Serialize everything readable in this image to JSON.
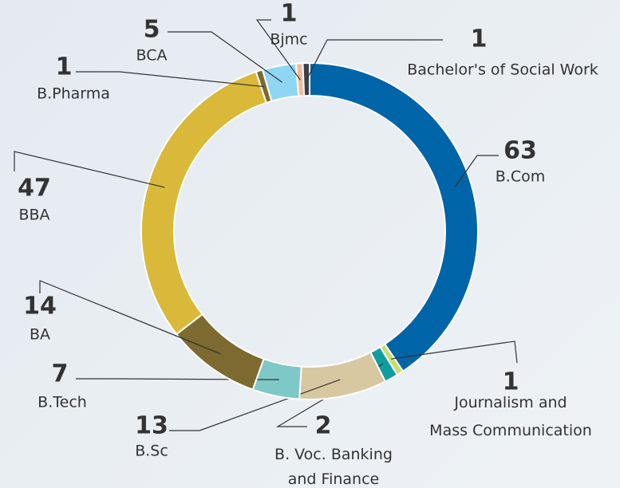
{
  "chart_data": {
    "type": "donut",
    "categories": [
      "B.Com",
      "Journalism and Mass Communication",
      "B. Voc. Banking and Finance",
      "B.Sc",
      "B.Tech",
      "BA",
      "BBA",
      "B.Pharma",
      "BCA",
      "Bjmc",
      "Bachelor's of Social Work"
    ],
    "values": [
      63,
      1,
      2,
      13,
      7,
      14,
      47,
      1,
      5,
      1,
      1
    ],
    "colors": [
      "#0064a8",
      "#c8de6c",
      "#0f9e9e",
      "#d8c8a2",
      "#7ec8c8",
      "#7d6a30",
      "#dab83a",
      "#7d6a30",
      "#8fd6f5",
      "#f6b99a",
      "#3a4048"
    ]
  }
}
